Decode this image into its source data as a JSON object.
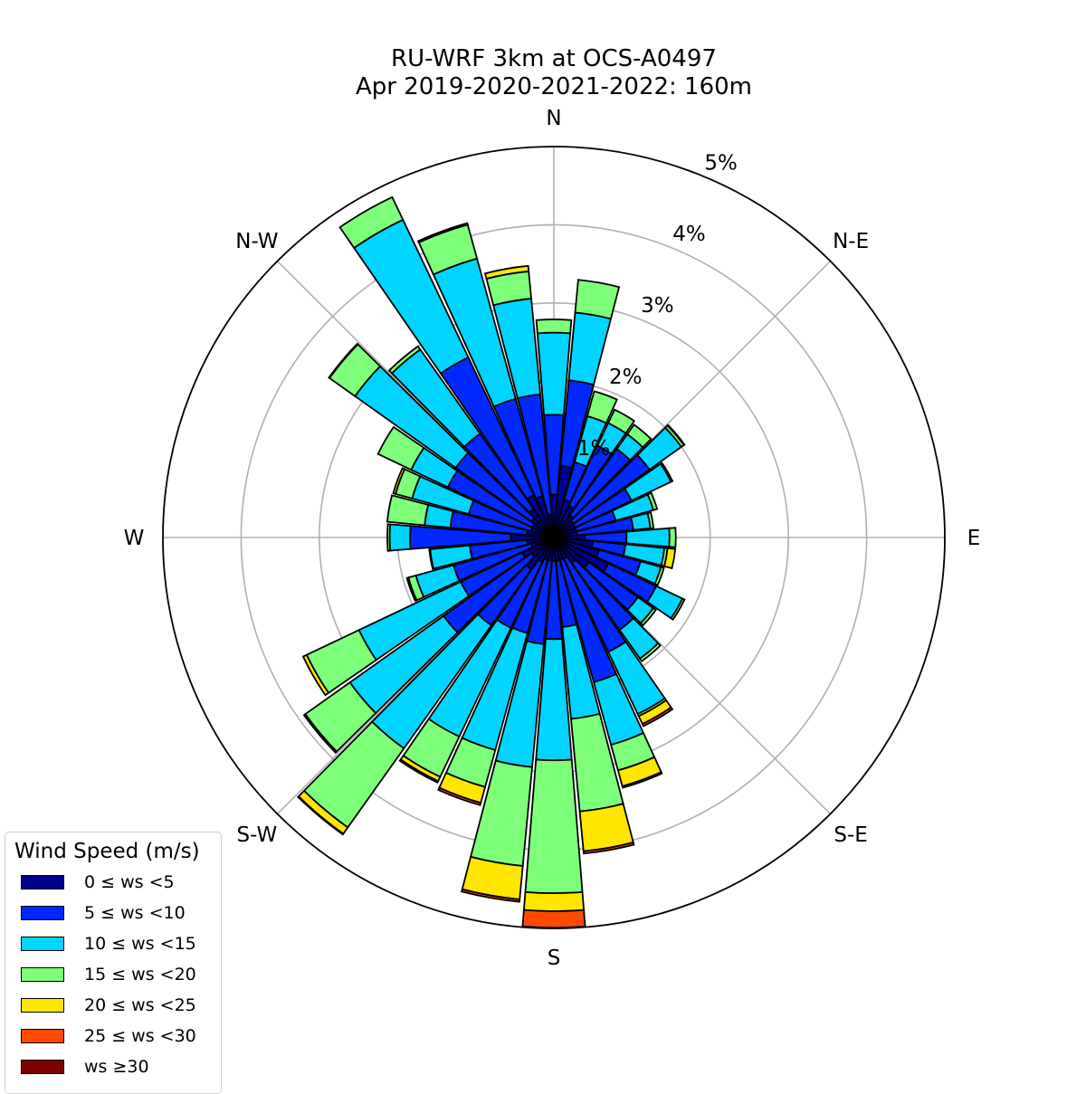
{
  "chart_data": {
    "type": "windrose",
    "title": "RU-WRF 3km at OCS-A0497",
    "subtitle": "Apr 2019-2020-2021-2022: 160m",
    "radial_unit": "%",
    "rlim": [
      0,
      5
    ],
    "radial_ticks": [
      1,
      2,
      3,
      4,
      5
    ],
    "radial_tick_labels": [
      "1%",
      "2%",
      "3%",
      "4%",
      "5%"
    ],
    "direction_labels": [
      "N",
      "N-E",
      "E",
      "S-E",
      "S",
      "S-W",
      "W",
      "N-W"
    ],
    "grid": true,
    "legend": {
      "title": "Wind Speed (m/s)",
      "placement": "bottom-left",
      "entries": [
        "0 ≤  ws <5",
        "5 ≤  ws <10",
        "10 ≤  ws <15",
        "15 ≤  ws <20",
        "20 ≤  ws <25",
        "25 ≤  ws <30",
        "ws ≥30"
      ]
    },
    "bin_colors": [
      "#00008f",
      "#0028ff",
      "#00d4ff",
      "#7dff7a",
      "#ffe600",
      "#ff4a00",
      "#800000"
    ],
    "directions_deg": [
      0,
      10,
      20,
      30,
      40,
      50,
      60,
      70,
      80,
      90,
      100,
      110,
      120,
      130,
      140,
      150,
      160,
      170,
      180,
      190,
      200,
      210,
      220,
      230,
      240,
      250,
      260,
      270,
      280,
      290,
      300,
      310,
      320,
      330,
      340,
      350
    ],
    "cumulative_percent_note": "each row: cumulative frequency (%) at top of each speed bin",
    "cumulative_percent": [
      [
        0.55,
        1.57,
        2.62,
        2.79,
        2.79,
        2.79,
        2.79
      ],
      [
        0.92,
        2.02,
        2.89,
        3.31,
        3.31,
        3.31,
        3.31
      ],
      [
        0.5,
        1.0,
        1.61,
        1.94,
        1.94,
        1.94,
        1.94
      ],
      [
        0.45,
        1.3,
        1.62,
        1.81,
        1.81,
        1.81,
        1.81
      ],
      [
        0.35,
        1.39,
        1.62,
        1.77,
        1.77,
        1.77,
        1.77
      ],
      [
        0.3,
        1.5,
        2.0,
        2.04,
        2.05,
        2.05,
        2.05
      ],
      [
        0.3,
        1.1,
        1.66,
        1.68,
        1.68,
        1.68,
        1.68
      ],
      [
        0.3,
        0.82,
        1.32,
        1.37,
        1.37,
        1.37,
        1.37
      ],
      [
        0.3,
        1.02,
        1.24,
        1.28,
        1.28,
        1.28,
        1.28
      ],
      [
        0.4,
        0.93,
        1.48,
        1.56,
        1.56,
        1.56,
        1.56
      ],
      [
        0.5,
        0.92,
        1.42,
        1.46,
        1.56,
        1.56,
        1.56
      ],
      [
        0.6,
        1.15,
        1.42,
        1.46,
        1.46,
        1.46,
        1.46
      ],
      [
        0.77,
        1.45,
        1.82,
        1.85,
        1.85,
        1.85,
        1.85
      ],
      [
        0.55,
        1.32,
        1.56,
        1.6,
        1.6,
        1.6,
        1.6
      ],
      [
        0.4,
        1.45,
        1.9,
        1.94,
        1.94,
        1.94,
        1.94
      ],
      [
        0.3,
        1.62,
        2.5,
        2.53,
        2.64,
        2.67,
        2.67
      ],
      [
        0.3,
        1.92,
        2.75,
        3.09,
        3.3,
        3.32,
        3.32
      ],
      [
        0.3,
        1.15,
        2.33,
        3.52,
        4.03,
        4.06,
        4.06
      ],
      [
        0.3,
        1.3,
        2.85,
        4.55,
        4.78,
        4.99,
        4.99
      ],
      [
        0.3,
        1.37,
        2.95,
        4.22,
        4.65,
        4.68,
        4.68
      ],
      [
        0.3,
        1.27,
        2.82,
        3.31,
        3.52,
        3.55,
        3.55
      ],
      [
        0.35,
        1.28,
        2.82,
        3.39,
        3.45,
        3.47,
        3.47
      ],
      [
        0.5,
        1.38,
        3.31,
        4.55,
        4.65,
        4.66,
        4.66
      ],
      [
        0.35,
        1.73,
        3.2,
        3.9,
        3.92,
        3.92,
        3.92
      ],
      [
        0.45,
        1.32,
        2.76,
        3.5,
        3.55,
        3.55,
        3.55
      ],
      [
        0.3,
        1.33,
        1.83,
        1.93,
        1.95,
        1.95,
        1.95
      ],
      [
        0.35,
        1.08,
        1.59,
        1.6,
        1.6,
        1.6,
        1.6
      ],
      [
        0.55,
        1.84,
        2.1,
        2.13,
        2.13,
        2.13,
        2.13
      ],
      [
        0.35,
        1.33,
        1.66,
        2.14,
        2.14,
        2.14,
        2.14
      ],
      [
        0.3,
        1.13,
        1.88,
        2.1,
        2.13,
        2.13,
        2.13
      ],
      [
        0.3,
        1.5,
        2.02,
        2.49,
        2.49,
        2.49,
        2.49
      ],
      [
        0.35,
        1.54,
        3.12,
        3.52,
        3.53,
        3.53,
        3.53
      ],
      [
        0.45,
        1.63,
        2.95,
        3.0,
        3.0,
        3.0,
        3.0
      ],
      [
        0.6,
        2.55,
        4.5,
        4.82,
        4.82,
        4.82,
        4.82
      ],
      [
        0.55,
        1.84,
        3.7,
        4.15,
        4.17,
        4.17,
        4.17
      ],
      [
        0.3,
        1.84,
        3.07,
        3.42,
        3.49,
        3.49,
        3.49
      ]
    ]
  }
}
